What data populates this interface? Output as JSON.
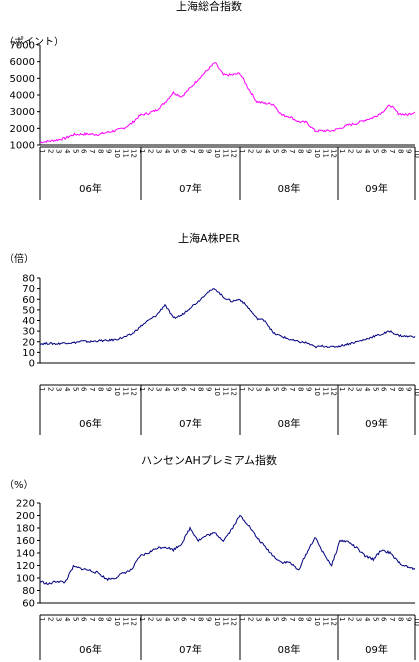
{
  "chart_data": [
    {
      "type": "line",
      "title": "上海総合指数",
      "unit_label": "（ポイント）",
      "ylim": [
        1000,
        7000
      ],
      "yticks": [
        "1000",
        "2000",
        "3000",
        "4000",
        "5000",
        "6000",
        "7000"
      ],
      "series_color": "#ff00ff",
      "x_years": [
        "06年",
        "07年",
        "08年",
        "09年"
      ],
      "month_ticks": [
        "1",
        "2",
        "3",
        "4",
        "5",
        "6",
        "7",
        "8",
        "9",
        "10",
        "11",
        "12",
        "1",
        "2",
        "3",
        "4",
        "5",
        "6",
        "7",
        "8",
        "9",
        "10",
        "11",
        "12",
        "1",
        "2",
        "3",
        "4",
        "5",
        "6",
        "7",
        "8",
        "9",
        "10",
        "11",
        "12",
        "1",
        "2",
        "3",
        "4",
        "5",
        "6",
        "7",
        "8",
        "9",
        "10"
      ],
      "series": [
        {
          "values": [
            [
              0,
              1170
            ],
            [
              1,
              1230
            ],
            [
              2,
              1300
            ],
            [
              3,
              1400
            ],
            [
              4,
              1620
            ],
            [
              5,
              1650
            ],
            [
              6,
              1650
            ],
            [
              7,
              1630
            ],
            [
              8,
              1750
            ],
            [
              9,
              1860
            ],
            [
              10,
              2000
            ],
            [
              11,
              2300
            ],
            [
              12,
              2780
            ],
            [
              13,
              2900
            ],
            [
              14,
              3100
            ],
            [
              15,
              3550
            ],
            [
              16,
              4150
            ],
            [
              17,
              3900
            ],
            [
              18,
              4400
            ],
            [
              19,
              4950
            ],
            [
              20,
              5450
            ],
            [
              21,
              5950
            ],
            [
              22,
              5200
            ],
            [
              23,
              5200
            ],
            [
              24,
              5300
            ],
            [
              25,
              4400
            ],
            [
              26,
              3600
            ],
            [
              27,
              3500
            ],
            [
              28,
              3450
            ],
            [
              29,
              2800
            ],
            [
              30,
              2700
            ],
            [
              31,
              2400
            ],
            [
              32,
              2350
            ],
            [
              33,
              1850
            ],
            [
              34,
              1850
            ],
            [
              35,
              1850
            ],
            [
              36,
              2000
            ],
            [
              37,
              2200
            ],
            [
              38,
              2300
            ],
            [
              39,
              2500
            ],
            [
              40,
              2650
            ],
            [
              41,
              2950
            ],
            [
              42,
              3400
            ],
            [
              43,
              2900
            ],
            [
              44,
              2800
            ],
            [
              45,
              2980
            ]
          ]
        }
      ]
    },
    {
      "type": "line",
      "title": "上海A株PER",
      "unit_label": "（倍）",
      "ylim": [
        0,
        80
      ],
      "yticks": [
        "0",
        "10",
        "20",
        "30",
        "40",
        "50",
        "60",
        "70",
        "80"
      ],
      "series_color": "#000080",
      "x_years": [
        "06年",
        "07年",
        "08年",
        "09年"
      ],
      "month_ticks": [
        "1",
        "2",
        "3",
        "4",
        "5",
        "6",
        "7",
        "8",
        "9",
        "10",
        "11",
        "12",
        "1",
        "2",
        "3",
        "4",
        "5",
        "6",
        "7",
        "8",
        "9",
        "10",
        "11",
        "12",
        "1",
        "2",
        "3",
        "4",
        "5",
        "6",
        "7",
        "8",
        "9",
        "10",
        "11",
        "12",
        "1",
        "2",
        "3",
        "4",
        "5",
        "6",
        "7",
        "8",
        "9",
        "10"
      ],
      "series": [
        {
          "values": [
            [
              0,
              18
            ],
            [
              1,
              18.5
            ],
            [
              2,
              18
            ],
            [
              3,
              19
            ],
            [
              4,
              19
            ],
            [
              5,
              20.5
            ],
            [
              6,
              20
            ],
            [
              7,
              21
            ],
            [
              8,
              21
            ],
            [
              9,
              22
            ],
            [
              10,
              24
            ],
            [
              11,
              27
            ],
            [
              12,
              34
            ],
            [
              13,
              40
            ],
            [
              14,
              45
            ],
            [
              15,
              55
            ],
            [
              16,
              42
            ],
            [
              17,
              45
            ],
            [
              18,
              52
            ],
            [
              19,
              58
            ],
            [
              20,
              66
            ],
            [
              21,
              70
            ],
            [
              22,
              62
            ],
            [
              23,
              58
            ],
            [
              24,
              60
            ],
            [
              25,
              52
            ],
            [
              26,
              42
            ],
            [
              27,
              40
            ],
            [
              28,
              28
            ],
            [
              29,
              25
            ],
            [
              30,
              22
            ],
            [
              31,
              20
            ],
            [
              32,
              19
            ],
            [
              33,
              15
            ],
            [
              34,
              16
            ],
            [
              35,
              15
            ],
            [
              36,
              16
            ],
            [
              37,
              18
            ],
            [
              38,
              20
            ],
            [
              39,
              22
            ],
            [
              40,
              25
            ],
            [
              41,
              27
            ],
            [
              42,
              30
            ],
            [
              43,
              26
            ],
            [
              44,
              25
            ],
            [
              45,
              25
            ]
          ]
        }
      ]
    },
    {
      "type": "line",
      "title": "ハンセンAHプレミアム指数",
      "unit_label": "（%）",
      "ylim": [
        60,
        220
      ],
      "yticks": [
        "60",
        "80",
        "100",
        "120",
        "140",
        "160",
        "180",
        "200",
        "220"
      ],
      "series_color": "#000080",
      "x_years": [
        "06年",
        "07年",
        "08年",
        "09年"
      ],
      "month_ticks": [
        "1",
        "2",
        "3",
        "4",
        "5",
        "6",
        "7",
        "8",
        "9",
        "10",
        "11",
        "12",
        "1",
        "2",
        "3",
        "4",
        "5",
        "6",
        "7",
        "8",
        "9",
        "10",
        "11",
        "12",
        "1",
        "2",
        "3",
        "4",
        "5",
        "6",
        "7",
        "8",
        "9",
        "10",
        "11",
        "12",
        "1",
        "2",
        "3",
        "4",
        "5",
        "6",
        "7",
        "8",
        "9",
        "10"
      ],
      "series": [
        {
          "values": [
            [
              0,
              95
            ],
            [
              1,
              90
            ],
            [
              2,
              95
            ],
            [
              3,
              93
            ],
            [
              4,
              118
            ],
            [
              5,
              115
            ],
            [
              6,
              112
            ],
            [
              7,
              108
            ],
            [
              8,
              98
            ],
            [
              9,
              100
            ],
            [
              10,
              108
            ],
            [
              11,
              113
            ],
            [
              12,
              135
            ],
            [
              13,
              140
            ],
            [
              14,
              148
            ],
            [
              15,
              150
            ],
            [
              16,
              145
            ],
            [
              17,
              155
            ],
            [
              18,
              180
            ],
            [
              19,
              160
            ],
            [
              20,
              168
            ],
            [
              21,
              172
            ],
            [
              22,
              160
            ],
            [
              23,
              178
            ],
            [
              24,
              200
            ],
            [
              25,
              185
            ],
            [
              26,
              165
            ],
            [
              27,
              150
            ],
            [
              28,
              135
            ],
            [
              29,
              125
            ],
            [
              30,
              125
            ],
            [
              31,
              112
            ],
            [
              32,
              140
            ],
            [
              33,
              165
            ],
            [
              34,
              140
            ],
            [
              35,
              120
            ],
            [
              36,
              160
            ],
            [
              37,
              158
            ],
            [
              38,
              148
            ],
            [
              39,
              135
            ],
            [
              40,
              130
            ],
            [
              41,
              145
            ],
            [
              42,
              140
            ],
            [
              43,
              125
            ],
            [
              44,
              118
            ],
            [
              45,
              114
            ]
          ]
        }
      ]
    }
  ]
}
